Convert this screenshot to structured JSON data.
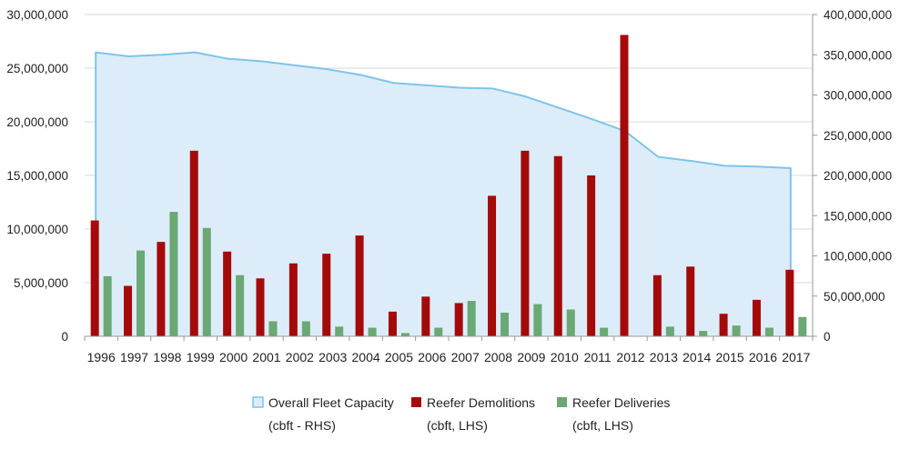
{
  "chart_data": {
    "type": "bar",
    "categories": [
      "1996",
      "1997",
      "1998",
      "1999",
      "2000",
      "2001",
      "2002",
      "2003",
      "2004",
      "2005",
      "2006",
      "2007",
      "2008",
      "2009",
      "2010",
      "2011",
      "2012",
      "2013",
      "2014",
      "2015",
      "2016",
      "2017"
    ],
    "series": [
      {
        "name": "Overall Fleet Capacity",
        "name_detail": "(cbft - RHS)",
        "kind": "area",
        "axis": "right",
        "color": "#7fc4e8",
        "fill": "#dcedf9",
        "values": [
          353000000,
          348000000,
          350000000,
          353000000,
          345000000,
          342000000,
          337000000,
          332000000,
          325000000,
          315000000,
          312000000,
          309000000,
          308000000,
          298000000,
          284000000,
          270000000,
          255000000,
          223000000,
          218000000,
          212000000,
          211000000,
          209000000
        ]
      },
      {
        "name": "Reefer Demolitions",
        "name_detail": "(cbft, LHS)",
        "kind": "bar",
        "axis": "left",
        "color": "#a50a0a",
        "values": [
          10800000,
          4700000,
          8800000,
          17300000,
          7900000,
          5400000,
          6800000,
          7700000,
          9400000,
          2300000,
          3700000,
          3100000,
          13100000,
          17300000,
          16800000,
          15000000,
          28100000,
          5700000,
          6500000,
          2100000,
          3400000,
          6200000
        ]
      },
      {
        "name": "Reefer Deliveries",
        "name_detail": "(cbft, LHS)",
        "kind": "bar",
        "axis": "left",
        "color": "#6aa874",
        "values": [
          5600000,
          8000000,
          11600000,
          10100000,
          5700000,
          1400000,
          1400000,
          900000,
          800000,
          300000,
          800000,
          3300000,
          2200000,
          3000000,
          2500000,
          800000,
          0,
          900000,
          500000,
          1000000,
          800000,
          1800000
        ]
      }
    ],
    "y_left": {
      "ylim": [
        0,
        30000000
      ],
      "ticks": [
        "0",
        "5,000,000",
        "10,000,000",
        "15,000,000",
        "20,000,000",
        "25,000,000",
        "30,000,000"
      ]
    },
    "y_right": {
      "ylim": [
        0,
        400000000
      ],
      "ticks": [
        "0",
        "50,000,000",
        "100,000,000",
        "150,000,000",
        "200,000,000",
        "250,000,000",
        "300,000,000",
        "350,000,000",
        "400,000,000"
      ]
    },
    "grid": true,
    "legend_placement": "bottom"
  }
}
